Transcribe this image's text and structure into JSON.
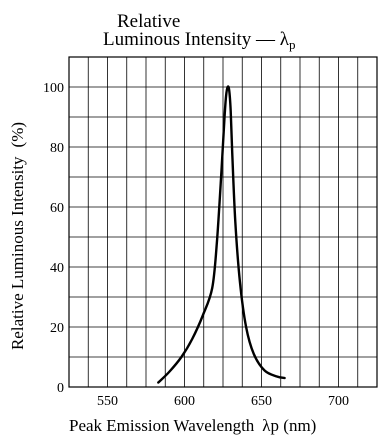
{
  "chart_data": {
    "type": "line",
    "title_line1": "Relative",
    "title_line2": "Luminous Intensity — λ",
    "title_subscript": "p",
    "xlabel": "Peak Emission Wavelength",
    "xlabel_symbol": "λp (nm)",
    "ylabel": "Relative Luminous Intensity",
    "ylabel_unit": "(%)",
    "xlim": [
      525,
      725
    ],
    "ylim": [
      0,
      110
    ],
    "x_ticks": [
      550,
      600,
      650,
      700
    ],
    "x_tick_labels": [
      "550",
      "600",
      "650",
      "700"
    ],
    "y_ticks": [
      0,
      20,
      40,
      60,
      80,
      100
    ],
    "y_tick_labels": [
      "0",
      "20",
      "40",
      "60",
      "80",
      "100"
    ],
    "x_grid_step": 12.5,
    "y_grid_step": 10,
    "grid": true,
    "series": [
      {
        "x": [
          583,
          590,
          598,
          605,
          612,
          618,
          621,
          624,
          626,
          627,
          628,
          629,
          630,
          631,
          633,
          636,
          640,
          645,
          652,
          660,
          665
        ],
        "y": [
          1.5,
          5,
          10,
          16,
          24,
          33,
          48,
          72,
          90,
          97,
          100,
          99,
          92,
          78,
          55,
          35,
          20,
          11,
          5.5,
          3.5,
          3
        ],
        "color": "#000000"
      }
    ]
  }
}
